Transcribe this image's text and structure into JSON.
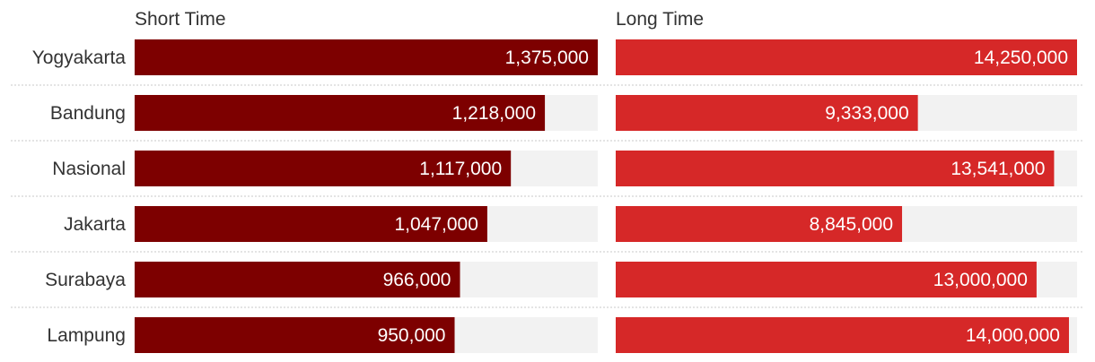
{
  "chart_data": {
    "type": "bar",
    "orientation": "horizontal",
    "categories": [
      "Yogyakarta",
      "Bandung",
      "Nasional",
      "Jakarta",
      "Surabaya",
      "Lampung"
    ],
    "series": [
      {
        "name": "Short Time",
        "color": "#7d0000",
        "values": [
          1375000,
          1218000,
          1117000,
          1047000,
          966000,
          950000
        ],
        "labels": [
          "1,375,000",
          "1,218,000",
          "1,117,000",
          "1,047,000",
          "966,000",
          "950,000"
        ]
      },
      {
        "name": "Long Time",
        "color": "#d62828",
        "values": [
          14250000,
          9333000,
          13541000,
          8845000,
          13000000,
          14000000
        ],
        "labels": [
          "14,250,000",
          "9,333,000",
          "13,541,000",
          "8,845,000",
          "13,000,000",
          "14,000,000"
        ]
      }
    ],
    "background_color": "#f2f2f2",
    "grid": false,
    "legend": "none"
  }
}
